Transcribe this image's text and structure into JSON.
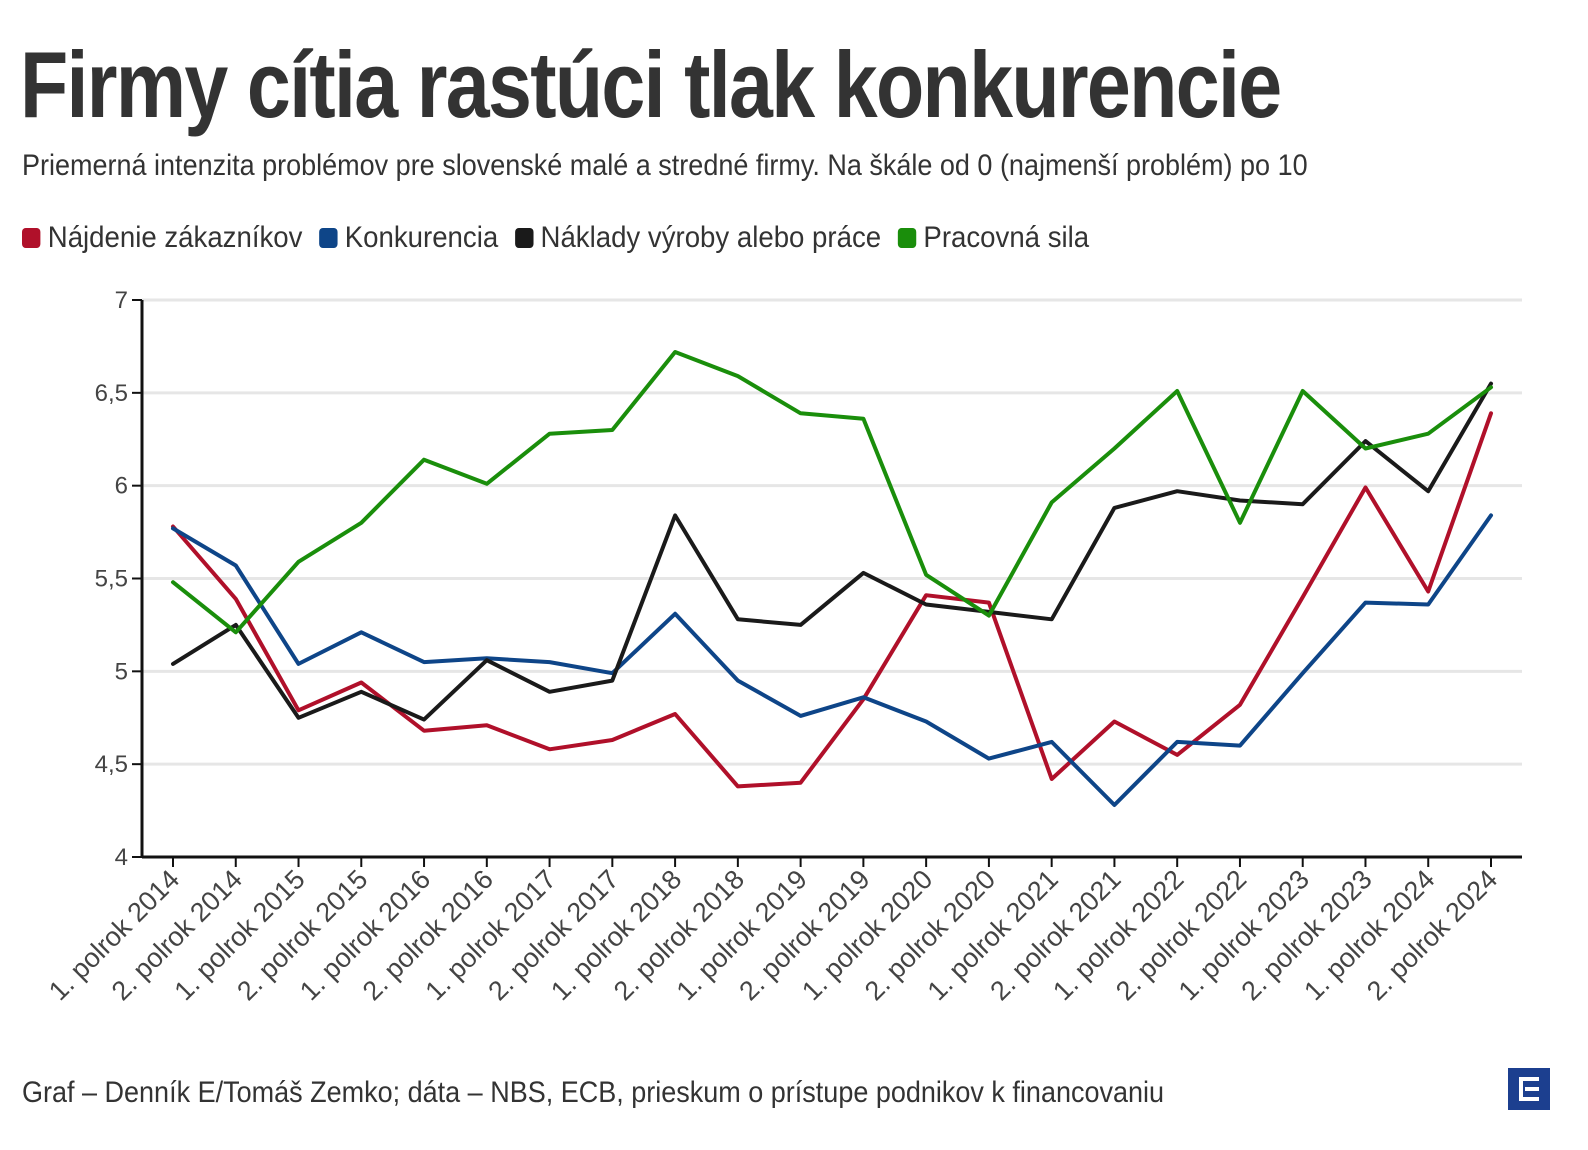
{
  "title": "Firmy cítia rastúci tlak konkurencie",
  "subtitle": "Priemerná intenzita problémov pre slovenské malé a stredné firmy. Na škále od 0 (najmenší problém) po 10",
  "footer": "Graf – Denník E/Tomáš Zemko; dáta – NBS, ECB, prieskum o prístupe podnikov k financovaniu",
  "logo": {
    "icon": "denník-e-logo-icon",
    "color": "#1c3f8f"
  },
  "chart_data": {
    "type": "line",
    "title": "Firmy cítia rastúci tlak konkurencie",
    "subtitle": "Priemerná intenzita problémov pre slovenské malé a stredné firmy. Na škále od 0 (najmenší problém) po 10",
    "xlabel": "",
    "ylabel": "",
    "ylim": [
      4,
      7
    ],
    "yticks": [
      4,
      4.5,
      5,
      5.5,
      6,
      6.5,
      7
    ],
    "ytick_labels": [
      "4",
      "4,5",
      "5",
      "5,5",
      "6",
      "6,5",
      "7"
    ],
    "grid": true,
    "legend_position": "top-left",
    "categories": [
      "1. polrok 2014",
      "2. polrok 2014",
      "1. polrok 2015",
      "2. polrok 2015",
      "1. polrok 2016",
      "2. polrok 2016",
      "1. polrok 2017",
      "2. polrok 2017",
      "1. polrok 2018",
      "2. polrok 2018",
      "1. polrok 2019",
      "2. polrok 2019",
      "1. polrok 2020",
      "2. polrok 2020",
      "1. polrok 2021",
      "2. polrok 2021",
      "1. polrok 2022",
      "2. polrok 2022",
      "1. polrok 2023",
      "2. polrok 2023",
      "1. polrok 2024",
      "2. polrok 2024"
    ],
    "series": [
      {
        "name": "Nájdenie zákazníkov",
        "color": "#b0102a",
        "values": [
          5.78,
          5.39,
          4.79,
          4.94,
          4.68,
          4.71,
          4.58,
          4.63,
          4.77,
          4.38,
          4.4,
          4.85,
          5.41,
          5.37,
          4.42,
          4.73,
          4.55,
          4.82,
          5.4,
          5.99,
          5.43,
          6.39
        ]
      },
      {
        "name": "Konkurencia",
        "color": "#0e4588",
        "values": [
          5.77,
          5.57,
          5.04,
          5.21,
          5.05,
          5.07,
          5.05,
          4.99,
          5.31,
          4.95,
          4.76,
          4.86,
          4.73,
          4.53,
          4.62,
          4.28,
          4.62,
          4.6,
          4.99,
          5.37,
          5.36,
          5.84
        ]
      },
      {
        "name": "Náklady výroby alebo práce",
        "color": "#1a1a1a",
        "values": [
          5.04,
          5.25,
          4.75,
          4.89,
          4.74,
          5.06,
          4.89,
          4.95,
          5.84,
          5.28,
          5.25,
          5.53,
          5.36,
          5.32,
          5.28,
          5.88,
          5.97,
          5.92,
          5.9,
          6.24,
          5.97,
          6.55
        ]
      },
      {
        "name": "Pracovná sila",
        "color": "#1a8e0b",
        "values": [
          5.48,
          5.21,
          5.59,
          5.8,
          6.14,
          6.01,
          6.28,
          6.3,
          6.72,
          6.59,
          6.39,
          6.36,
          5.52,
          5.3,
          5.91,
          6.2,
          6.51,
          5.8,
          6.51,
          6.2,
          6.28,
          6.53
        ]
      }
    ]
  }
}
